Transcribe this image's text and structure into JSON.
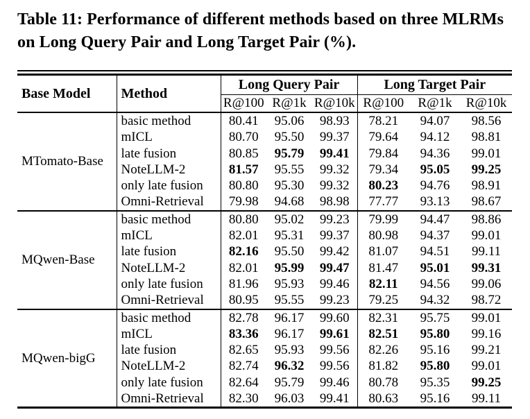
{
  "title": "Table 11: Performance of different methods based on three MLRMs on Long Query Pair and Long Target Pair (%).",
  "chart_data": {
    "type": "table",
    "header": {
      "base_model": "Base Model",
      "method": "Method",
      "groups": [
        {
          "label": "Long Query Pair",
          "metrics": [
            "R@100",
            "R@1k",
            "R@10k"
          ]
        },
        {
          "label": "Long Target Pair",
          "metrics": [
            "R@100",
            "R@1k",
            "R@10k"
          ]
        }
      ]
    },
    "blocks": [
      {
        "base_model": "MTomato-Base",
        "rows": [
          {
            "method": "basic method",
            "values": [
              "80.41",
              "95.06",
              "98.93",
              "78.21",
              "94.07",
              "98.56"
            ],
            "bold": []
          },
          {
            "method": "mICL",
            "values": [
              "80.70",
              "95.50",
              "99.37",
              "79.64",
              "94.12",
              "98.81"
            ],
            "bold": []
          },
          {
            "method": "late fusion",
            "values": [
              "80.85",
              "95.79",
              "99.41",
              "79.84",
              "94.36",
              "99.01"
            ],
            "bold": [
              1,
              2
            ]
          },
          {
            "method": "NoteLLM-2",
            "values": [
              "81.57",
              "95.55",
              "99.32",
              "79.34",
              "95.05",
              "99.25"
            ],
            "bold": [
              0,
              4,
              5
            ]
          },
          {
            "method": "only late fusion",
            "values": [
              "80.80",
              "95.30",
              "99.32",
              "80.23",
              "94.76",
              "98.91"
            ],
            "bold": [
              3
            ]
          },
          {
            "method": "Omni-Retrieval",
            "values": [
              "79.98",
              "94.68",
              "98.98",
              "77.77",
              "93.13",
              "98.67"
            ],
            "bold": []
          }
        ]
      },
      {
        "base_model": "MQwen-Base",
        "rows": [
          {
            "method": "basic method",
            "values": [
              "80.80",
              "95.02",
              "99.23",
              "79.99",
              "94.47",
              "98.86"
            ],
            "bold": []
          },
          {
            "method": "mICL",
            "values": [
              "82.01",
              "95.31",
              "99.37",
              "80.98",
              "94.37",
              "99.01"
            ],
            "bold": []
          },
          {
            "method": "late fusion",
            "values": [
              "82.16",
              "95.50",
              "99.42",
              "81.07",
              "94.51",
              "99.11"
            ],
            "bold": [
              0
            ]
          },
          {
            "method": "NoteLLM-2",
            "values": [
              "82.01",
              "95.99",
              "99.47",
              "81.47",
              "95.01",
              "99.31"
            ],
            "bold": [
              1,
              2,
              4,
              5
            ]
          },
          {
            "method": "only late fusion",
            "values": [
              "81.96",
              "95.93",
              "99.46",
              "82.11",
              "94.56",
              "99.06"
            ],
            "bold": [
              3
            ]
          },
          {
            "method": "Omni-Retrieval",
            "values": [
              "80.95",
              "95.55",
              "99.23",
              "79.25",
              "94.32",
              "98.72"
            ],
            "bold": []
          }
        ]
      },
      {
        "base_model": "MQwen-bigG",
        "rows": [
          {
            "method": "basic method",
            "values": [
              "82.78",
              "96.17",
              "99.60",
              "82.31",
              "95.75",
              "99.01"
            ],
            "bold": []
          },
          {
            "method": "mICL",
            "values": [
              "83.36",
              "96.17",
              "99.61",
              "82.51",
              "95.80",
              "99.16"
            ],
            "bold": [
              0,
              2,
              3,
              4
            ]
          },
          {
            "method": "late fusion",
            "values": [
              "82.65",
              "95.93",
              "99.56",
              "82.26",
              "95.16",
              "99.21"
            ],
            "bold": []
          },
          {
            "method": "NoteLLM-2",
            "values": [
              "82.74",
              "96.32",
              "99.56",
              "81.82",
              "95.80",
              "99.01"
            ],
            "bold": [
              1,
              4
            ]
          },
          {
            "method": "only late fusion",
            "values": [
              "82.64",
              "95.79",
              "99.46",
              "80.78",
              "95.35",
              "99.25"
            ],
            "bold": [
              5
            ]
          },
          {
            "method": "Omni-Retrieval",
            "values": [
              "82.30",
              "96.03",
              "99.41",
              "80.63",
              "95.16",
              "99.11"
            ],
            "bold": []
          }
        ]
      }
    ]
  }
}
